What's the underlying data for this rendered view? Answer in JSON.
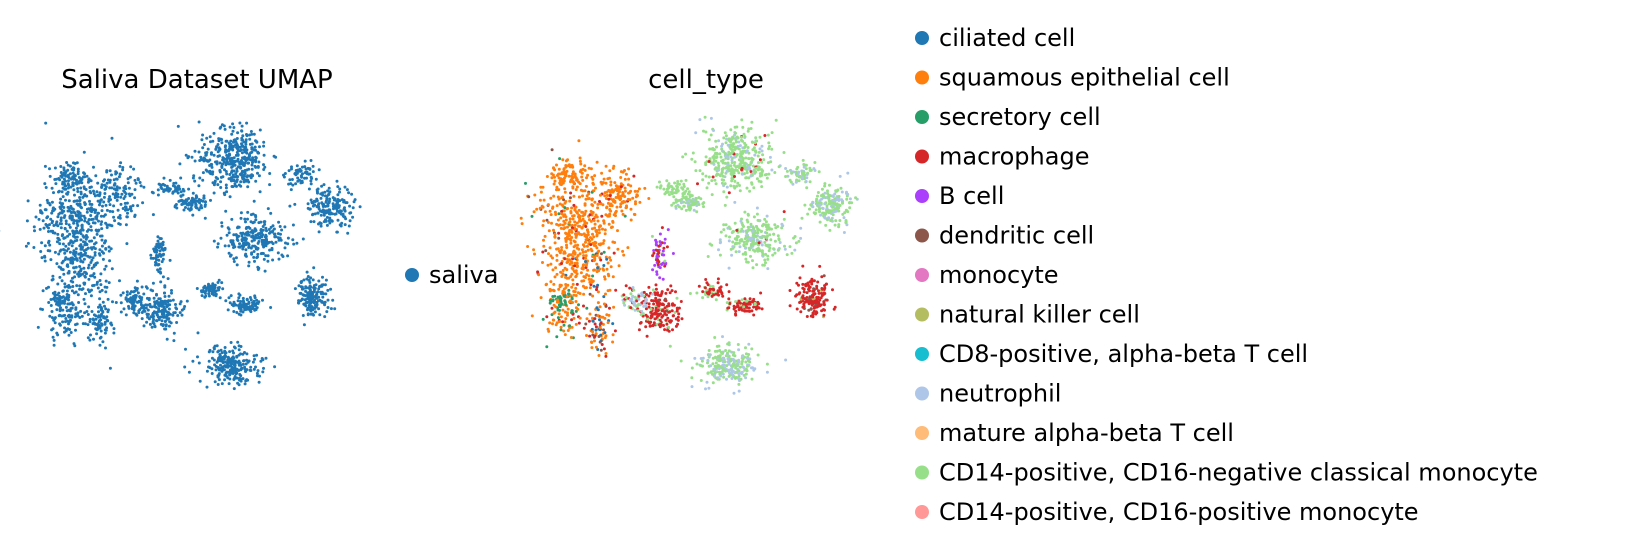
{
  "chart_data": [
    {
      "type": "scatter",
      "title": "Saliva Dataset UMAP",
      "xlabel": "",
      "ylabel": "",
      "grid": false,
      "legend_placement": "right",
      "series": [
        {
          "name": "saliva",
          "color": "#1f77b4"
        }
      ]
    },
    {
      "type": "scatter",
      "title": "cell_type",
      "xlabel": "",
      "ylabel": "",
      "grid": false,
      "legend_placement": "right",
      "series": [
        {
          "name": "ciliated cell",
          "color": "#1f77b4"
        },
        {
          "name": "squamous epithelial cell",
          "color": "#ff7f0e"
        },
        {
          "name": "secretory cell",
          "color": "#279e68"
        },
        {
          "name": "macrophage",
          "color": "#d62728"
        },
        {
          "name": "B cell",
          "color": "#aa40fc"
        },
        {
          "name": "dendritic cell",
          "color": "#8c564b"
        },
        {
          "name": "monocyte",
          "color": "#e377c2"
        },
        {
          "name": "natural killer cell",
          "color": "#b5bd61"
        },
        {
          "name": "CD8-positive, alpha-beta T cell",
          "color": "#17becf"
        },
        {
          "name": "neutrophil",
          "color": "#aec7e8"
        },
        {
          "name": "mature alpha-beta T cell",
          "color": "#ffbb78"
        },
        {
          "name": "CD14-positive, CD16-negative classical monocyte",
          "color": "#98df8a"
        },
        {
          "name": "CD14-positive, CD16-positive monocyte",
          "color": "#ff9896"
        }
      ]
    }
  ]
}
